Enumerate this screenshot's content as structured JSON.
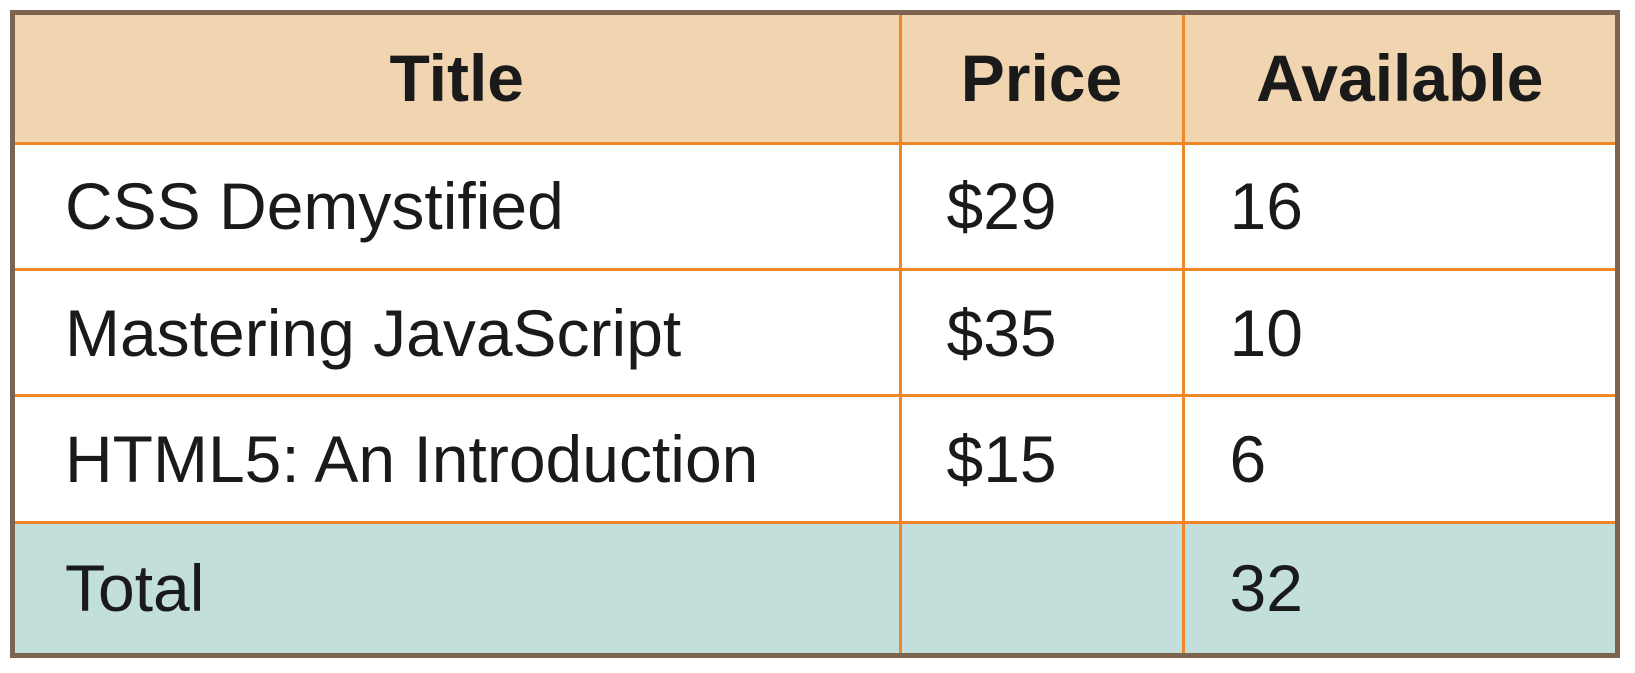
{
  "table": {
    "headers": [
      "Title",
      "Price",
      "Available"
    ],
    "rows": [
      [
        "CSS Demystified",
        "$29",
        "16"
      ],
      [
        "Mastering JavaScript",
        "$35",
        "10"
      ],
      [
        "HTML5: An Introduction",
        "$15",
        "6"
      ]
    ],
    "total": {
      "label": "Total",
      "price": "",
      "available": "32"
    }
  },
  "colors": {
    "header_bg": "#f1d4b0",
    "total_bg": "#c3dfdb",
    "grid_line": "#f0852a",
    "frame": "#7c6450"
  }
}
